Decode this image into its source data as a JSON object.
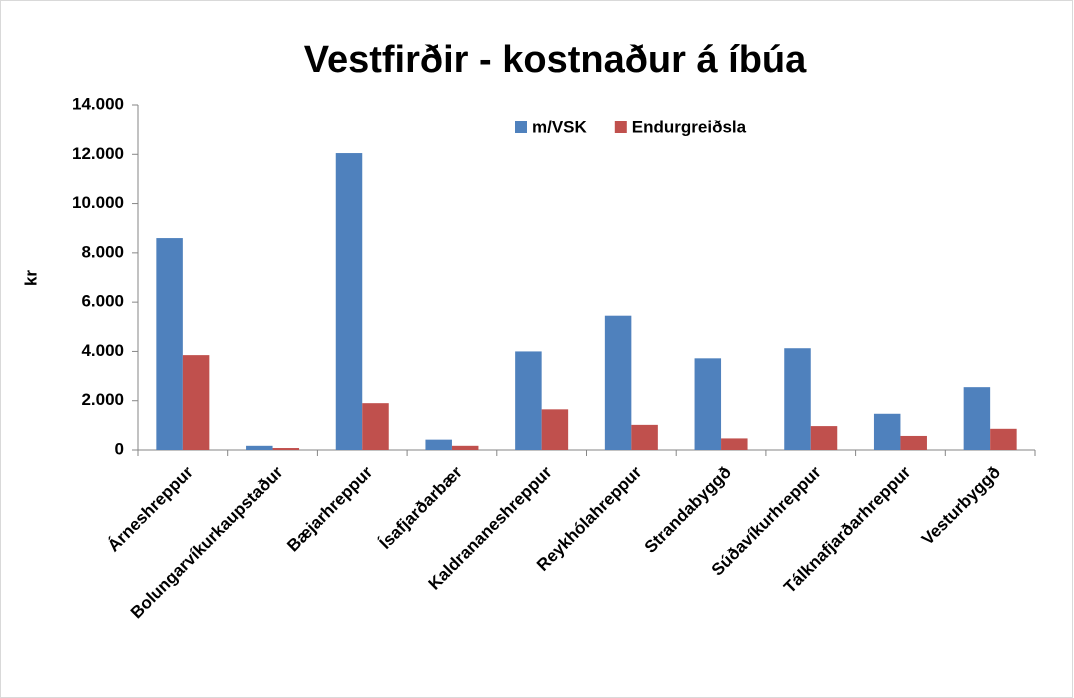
{
  "chart_data": {
    "type": "bar",
    "title": "Vestfirðir - kostnaður á íbúa",
    "y_label": "kr",
    "categories": [
      "Árneshreppur",
      "Bolungarvíkurkaupstaður",
      "Bæjarhreppur",
      "Ísafjarðarbær",
      "Kaldrananeshreppur",
      "Reykhólahreppur",
      "Strandabyggð",
      "Súðavíkurhreppur",
      "Tálknafjarðarhreppur",
      "Vesturbyggð"
    ],
    "series": [
      {
        "name": "m/VSK",
        "color": "#4f81bd",
        "values": [
          8600,
          170,
          12050,
          420,
          4000,
          5450,
          3720,
          4130,
          1470,
          2550
        ]
      },
      {
        "name": "Endurgreiðsla",
        "color": "#c0504d",
        "values": [
          3850,
          80,
          1900,
          170,
          1650,
          1020,
          470,
          970,
          570,
          860
        ]
      }
    ],
    "ylim": [
      0,
      14000
    ],
    "yticks": [
      0,
      {
        "value": 2000,
        "label": "2.000"
      },
      {
        "value": 4000,
        "label": "4.000"
      },
      {
        "value": 6000,
        "label": "6.000"
      },
      {
        "value": 8000,
        "label": "8.000"
      },
      {
        "value": 10000,
        "label": "10.000"
      },
      {
        "value": 12000,
        "label": "12.000"
      },
      {
        "value": 14000,
        "label": "14.000"
      }
    ],
    "grid": false,
    "legend": "top"
  }
}
